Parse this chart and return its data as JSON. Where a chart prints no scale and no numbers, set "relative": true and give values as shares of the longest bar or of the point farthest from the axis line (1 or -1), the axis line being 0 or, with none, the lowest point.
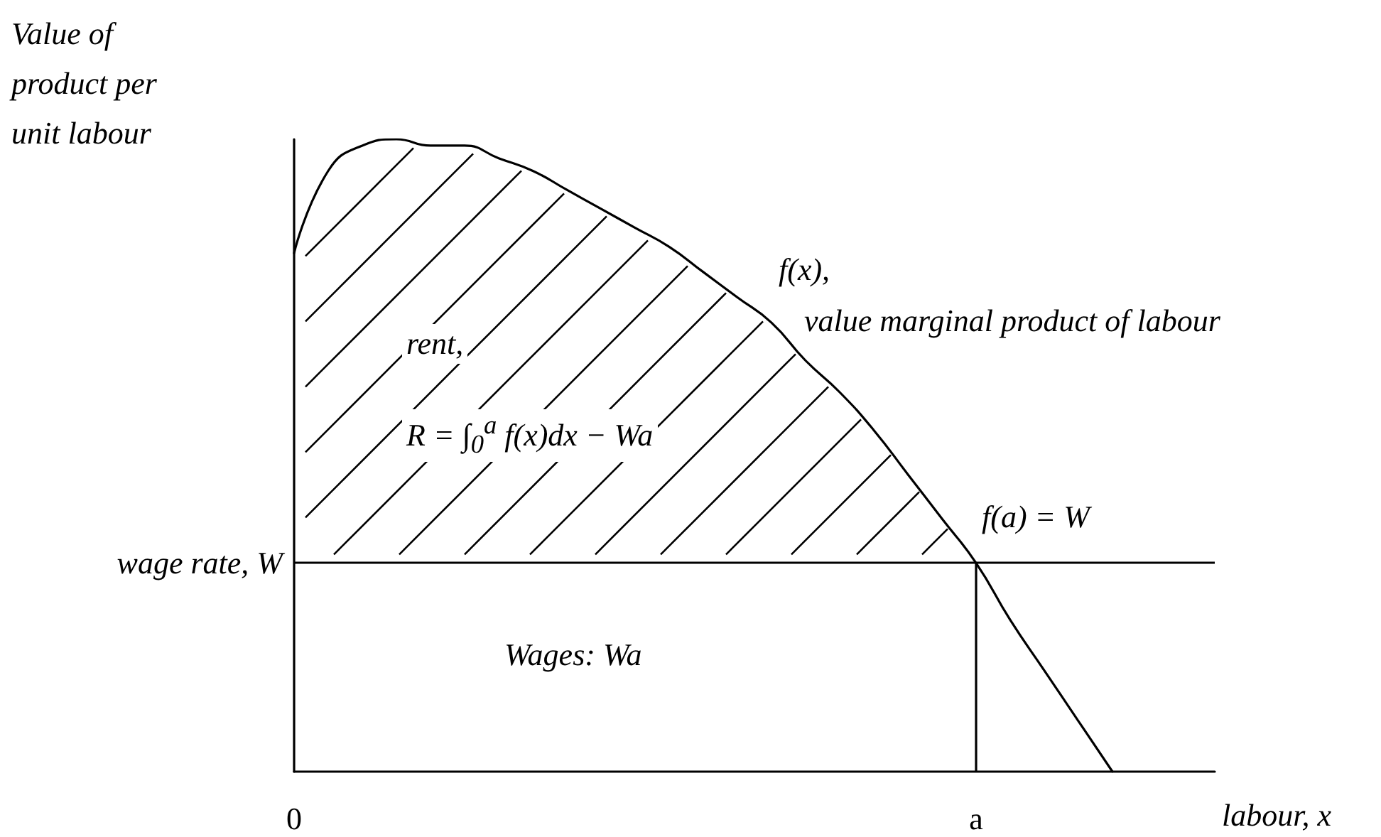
{
  "chart_data": {
    "type": "line",
    "relative": true,
    "xlabel": "labour, x",
    "ylabel": "Value of product per unit labour",
    "categories": [
      "0",
      null,
      null,
      null,
      null,
      null,
      null,
      null,
      null,
      null,
      null,
      null,
      null,
      null,
      null,
      null,
      null,
      null,
      null,
      null,
      "a",
      null,
      null,
      null,
      null,
      null,
      null,
      null
    ],
    "series": [
      {
        "color": "#000000",
        "values": [
          0.82,
          0.95,
          0.99,
          1.0,
          0.99,
          0.99,
          0.97,
          0.95,
          0.92,
          0.89,
          0.86,
          0.83,
          0.79,
          0.75,
          0.71,
          0.65,
          0.6,
          0.54,
          0.47,
          0.4,
          0.33,
          0.24,
          0.16,
          0.08,
          0.0,
          null,
          null,
          null
        ]
      }
    ],
    "ref_lines": [
      {
        "axis": "y",
        "value": 0.33,
        "label": "wage rate, W"
      },
      {
        "axis": "x",
        "value": "a"
      }
    ],
    "annotations": [
      "rent,",
      "R = ∫$_{0}$$^{a}$ f(x)dx − Wa",
      "Wages:  Wa",
      "f(x),",
      "value marginal product of labour",
      {
        "text": "f(a) = W",
        "x": "a",
        "y": 0.33
      }
    ],
    "tick_labels": "x",
    "grid": false,
    "marker": "none",
    "line_style": "solid"
  }
}
